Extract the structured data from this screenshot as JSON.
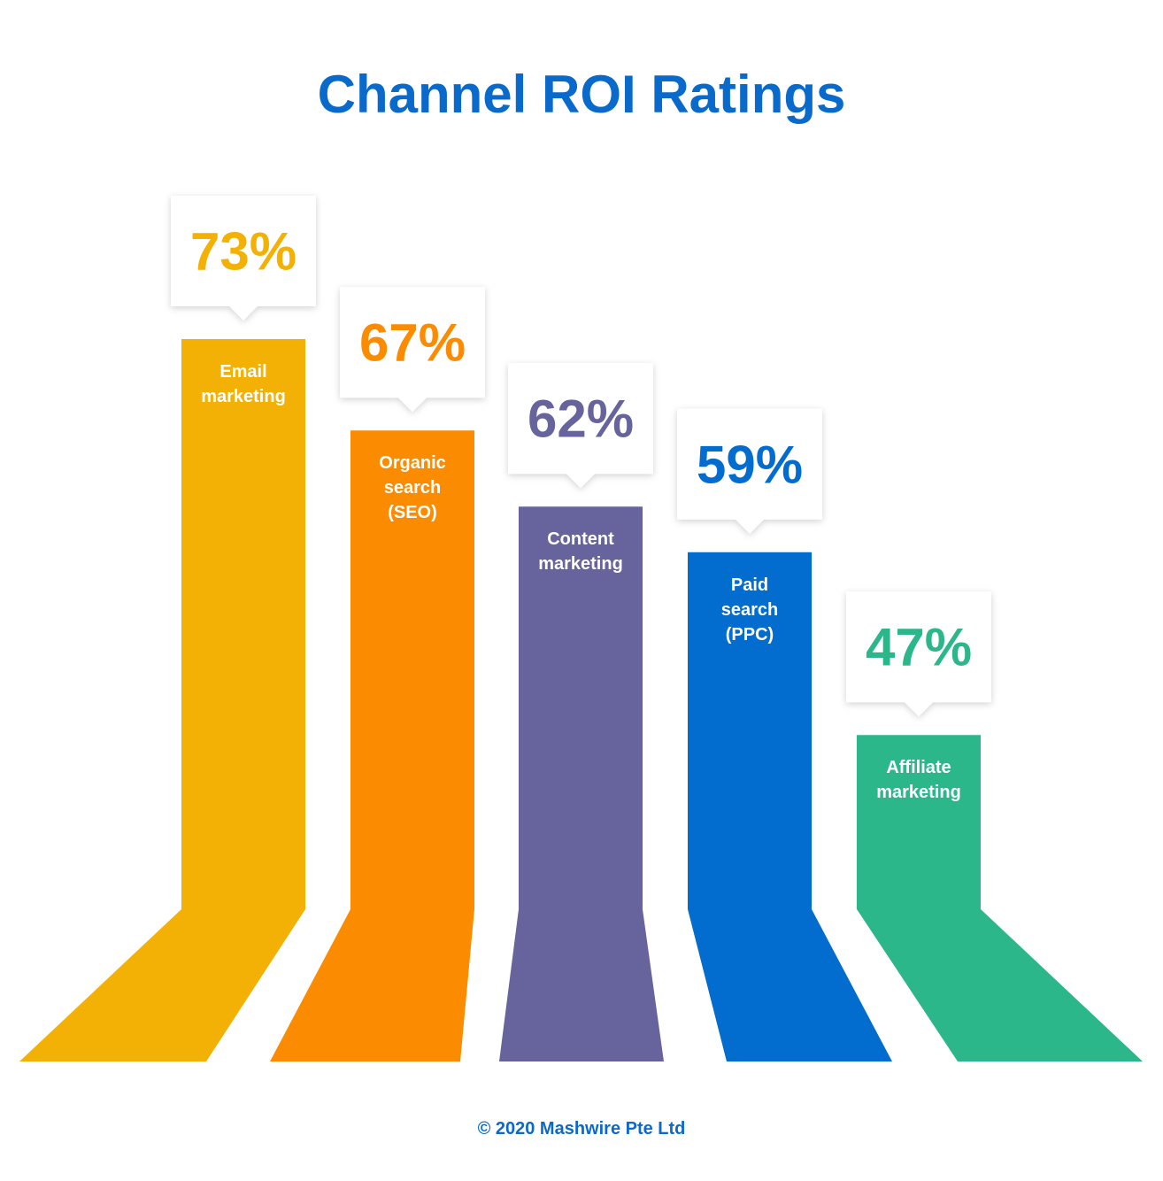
{
  "title": "Channel ROI Ratings",
  "footer": "© 2020 Mashwire Pte Ltd",
  "chart_data": {
    "type": "bar",
    "title": "Channel ROI Ratings",
    "categories": [
      [
        "Email",
        "marketing"
      ],
      [
        "Organic",
        "search",
        "(SEO)"
      ],
      [
        "Content",
        "marketing"
      ],
      [
        "Paid",
        "search",
        "(PPC)"
      ],
      [
        "Affiliate",
        "marketing"
      ]
    ],
    "values": [
      73,
      67,
      62,
      59,
      47
    ],
    "value_labels": [
      "73%",
      "67%",
      "62%",
      "59%",
      "47%"
    ],
    "colors": [
      "#f2b104",
      "#fb8b01",
      "#66639d",
      "#036ccf",
      "#2bb78a"
    ]
  }
}
